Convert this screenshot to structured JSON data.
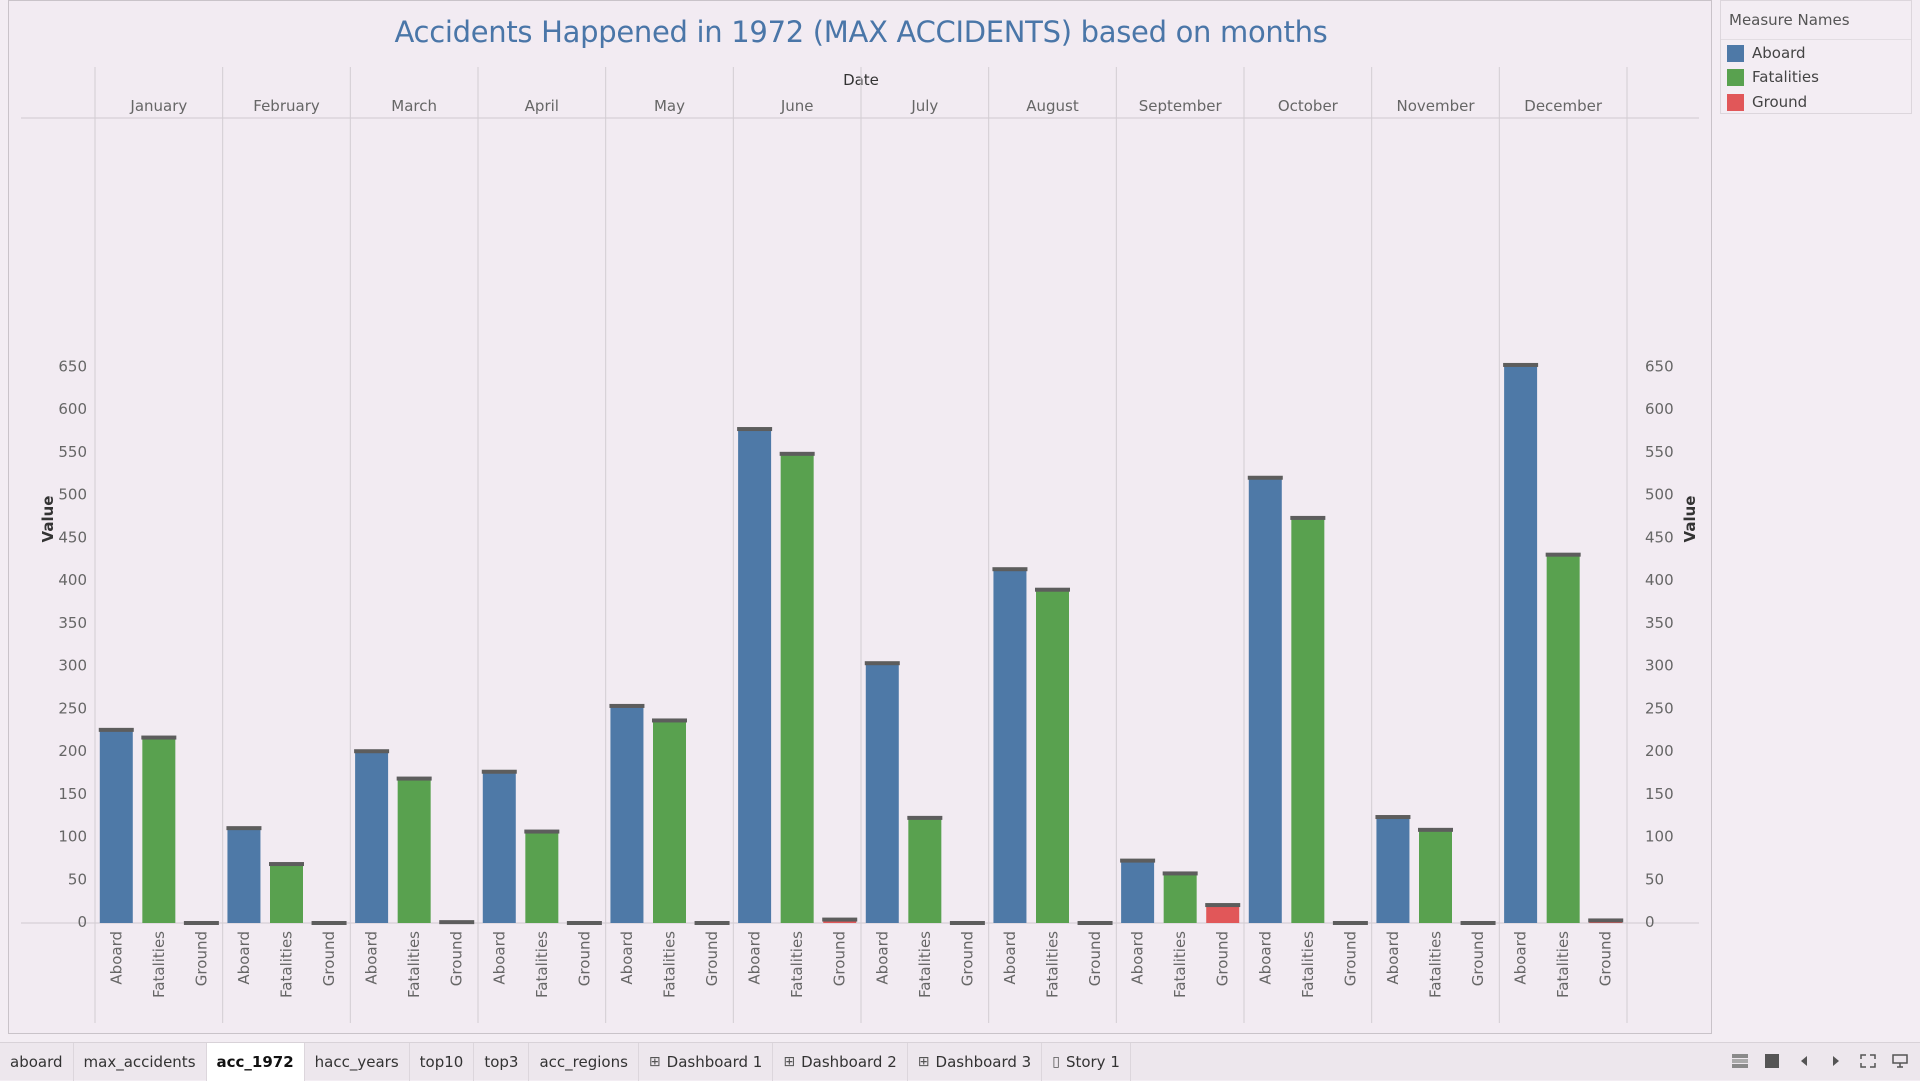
{
  "chart_data": {
    "type": "bar",
    "title": "Accidents Happened in 1972 (MAX ACCIDENTS) based on months",
    "column_header": "Date",
    "categories": [
      "January",
      "February",
      "March",
      "April",
      "May",
      "June",
      "July",
      "August",
      "September",
      "October",
      "November",
      "December"
    ],
    "series": [
      {
        "name": "Aboard",
        "values": [
          226,
          111,
          201,
          177,
          254,
          578,
          304,
          414,
          73,
          521,
          124,
          653
        ]
      },
      {
        "name": "Fatalities",
        "values": [
          217,
          69,
          169,
          107,
          237,
          549,
          123,
          390,
          58,
          474,
          109,
          431
        ]
      },
      {
        "name": "Ground",
        "values": [
          0,
          0,
          1,
          0,
          0,
          4,
          0,
          0,
          21,
          0,
          0,
          3
        ]
      }
    ],
    "ylabel": "Value",
    "ylabel_right": "Value",
    "ylim": [
      0,
      690
    ],
    "yticks": [
      0,
      50,
      100,
      150,
      200,
      250,
      300,
      350,
      400,
      450,
      500,
      550,
      600,
      650
    ],
    "legend_placement": "top-right",
    "colors": {
      "Aboard": "#4e79a7",
      "Fatalities": "#59a14f",
      "Ground": "#e15759"
    }
  },
  "legend": {
    "title": "Measure Names",
    "items": [
      {
        "label": "Aboard",
        "color": "#4e79a7"
      },
      {
        "label": "Fatalities",
        "color": "#59a14f"
      },
      {
        "label": "Ground",
        "color": "#e15759"
      }
    ]
  },
  "tabs": [
    {
      "label": "aboard",
      "icon": ""
    },
    {
      "label": "max_accidents",
      "icon": ""
    },
    {
      "label": "acc_1972",
      "icon": "",
      "active": true
    },
    {
      "label": "hacc_years",
      "icon": ""
    },
    {
      "label": "top10",
      "icon": ""
    },
    {
      "label": "top3",
      "icon": ""
    },
    {
      "label": "acc_regions",
      "icon": ""
    },
    {
      "label": "Dashboard 1",
      "icon": "dashboard-grid-icon"
    },
    {
      "label": "Dashboard 2",
      "icon": "dashboard-grid-icon"
    },
    {
      "label": "Dashboard 3",
      "icon": "dashboard-grid-icon"
    },
    {
      "label": "Story 1",
      "icon": "story-book-icon"
    }
  ],
  "controls": [
    "sheet-sorter-icon",
    "filmstrip-icon",
    "prev-sheet-icon",
    "next-sheet-icon",
    "fullscreen-icon",
    "presentation-icon"
  ]
}
